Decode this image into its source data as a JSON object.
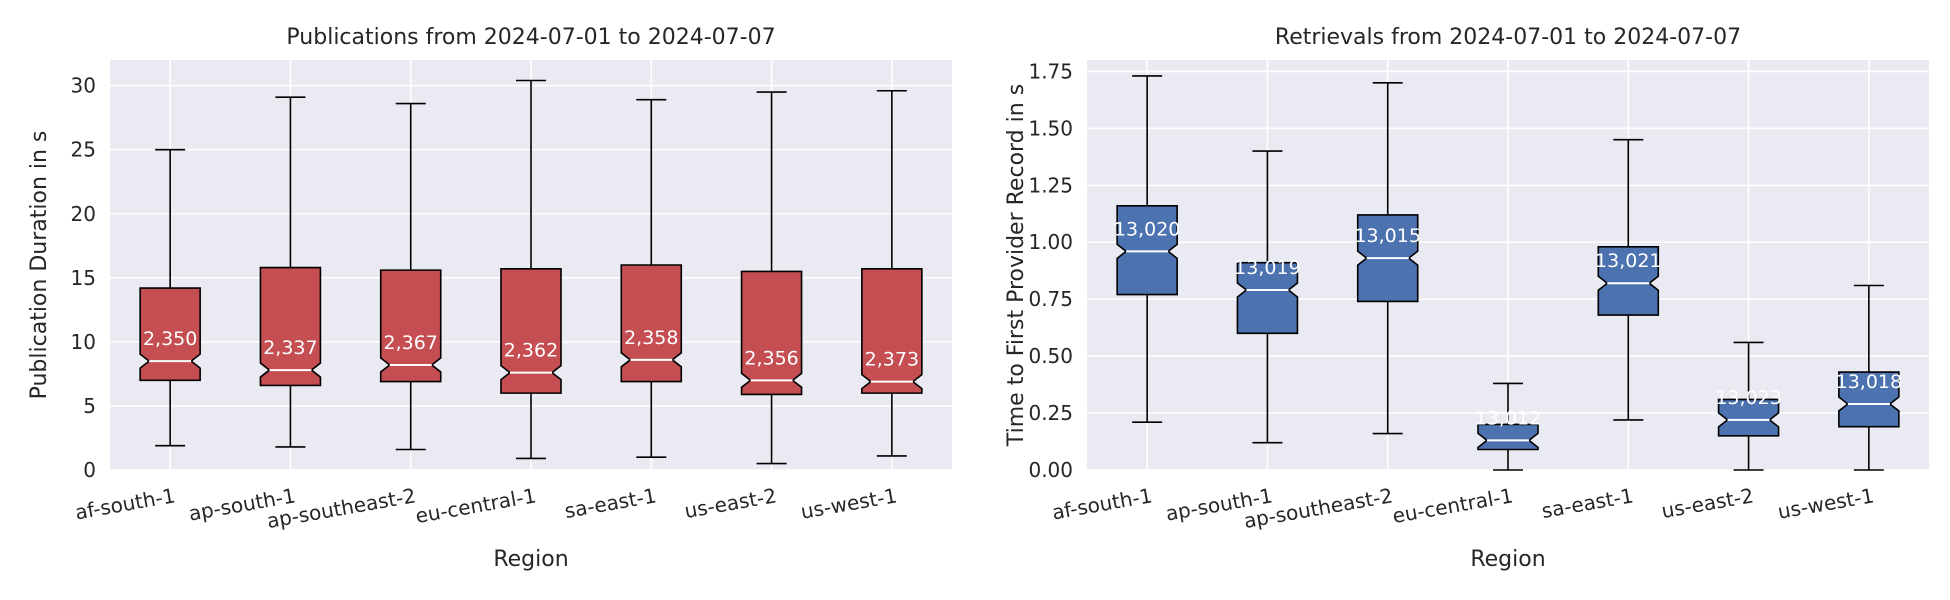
{
  "chart_data": [
    {
      "type": "boxplot",
      "title": "Publications from 2024-07-01 to 2024-07-07",
      "xlabel": "Region",
      "ylabel": "Publication Duration in s",
      "ylim": [
        0,
        32
      ],
      "yticks": [
        "0",
        "5",
        "10",
        "15",
        "20",
        "25",
        "30"
      ],
      "grid": true,
      "notched": true,
      "color": "#C44E52",
      "categories": [
        "af-south-1",
        "ap-south-1",
        "ap-southeast-2",
        "eu-central-1",
        "sa-east-1",
        "us-east-2",
        "us-west-1"
      ],
      "boxes": [
        {
          "whislo": 1.9,
          "q1": 7.0,
          "median": 8.5,
          "q3": 14.2,
          "whishi": 25.0,
          "count": "2,350"
        },
        {
          "whislo": 1.8,
          "q1": 6.6,
          "median": 7.8,
          "q3": 15.8,
          "whishi": 29.1,
          "count": "2,337"
        },
        {
          "whislo": 1.6,
          "q1": 6.9,
          "median": 8.2,
          "q3": 15.6,
          "whishi": 28.6,
          "count": "2,367"
        },
        {
          "whislo": 0.9,
          "q1": 6.0,
          "median": 7.6,
          "q3": 15.7,
          "whishi": 30.4,
          "count": "2,362"
        },
        {
          "whislo": 1.0,
          "q1": 6.9,
          "median": 8.6,
          "q3": 16.0,
          "whishi": 28.9,
          "count": "2,358"
        },
        {
          "whislo": 0.5,
          "q1": 5.9,
          "median": 7.0,
          "q3": 15.5,
          "whishi": 29.5,
          "count": "2,356"
        },
        {
          "whislo": 1.1,
          "q1": 6.0,
          "median": 6.9,
          "q3": 15.7,
          "whishi": 29.6,
          "count": "2,373"
        }
      ]
    },
    {
      "type": "boxplot",
      "title": "Retrievals from 2024-07-01 to 2024-07-07",
      "xlabel": "Region",
      "ylabel": "Time to First Provider Record in s",
      "ylim": [
        0,
        1.8
      ],
      "yticks": [
        "0.00",
        "0.25",
        "0.50",
        "0.75",
        "1.00",
        "1.25",
        "1.50",
        "1.75"
      ],
      "grid": true,
      "notched": true,
      "color": "#4C72B0",
      "categories": [
        "af-south-1",
        "ap-south-1",
        "ap-southeast-2",
        "eu-central-1",
        "sa-east-1",
        "us-east-2",
        "us-west-1"
      ],
      "boxes": [
        {
          "whislo": 0.21,
          "q1": 0.77,
          "median": 0.96,
          "q3": 1.16,
          "whishi": 1.73,
          "count": "13,020"
        },
        {
          "whislo": 0.12,
          "q1": 0.6,
          "median": 0.79,
          "q3": 0.91,
          "whishi": 1.4,
          "count": "13,019"
        },
        {
          "whislo": 0.16,
          "q1": 0.74,
          "median": 0.93,
          "q3": 1.12,
          "whishi": 1.7,
          "count": "13,015"
        },
        {
          "whislo": 0.0,
          "q1": 0.09,
          "median": 0.13,
          "q3": 0.2,
          "whishi": 0.38,
          "count": "13,012"
        },
        {
          "whislo": 0.22,
          "q1": 0.68,
          "median": 0.82,
          "q3": 0.98,
          "whishi": 1.45,
          "count": "13,021"
        },
        {
          "whislo": 0.0,
          "q1": 0.15,
          "median": 0.22,
          "q3": 0.31,
          "whishi": 0.56,
          "count": "13,023"
        },
        {
          "whislo": 0.0,
          "q1": 0.19,
          "median": 0.29,
          "q3": 0.43,
          "whishi": 0.81,
          "count": "13,018"
        }
      ]
    }
  ]
}
